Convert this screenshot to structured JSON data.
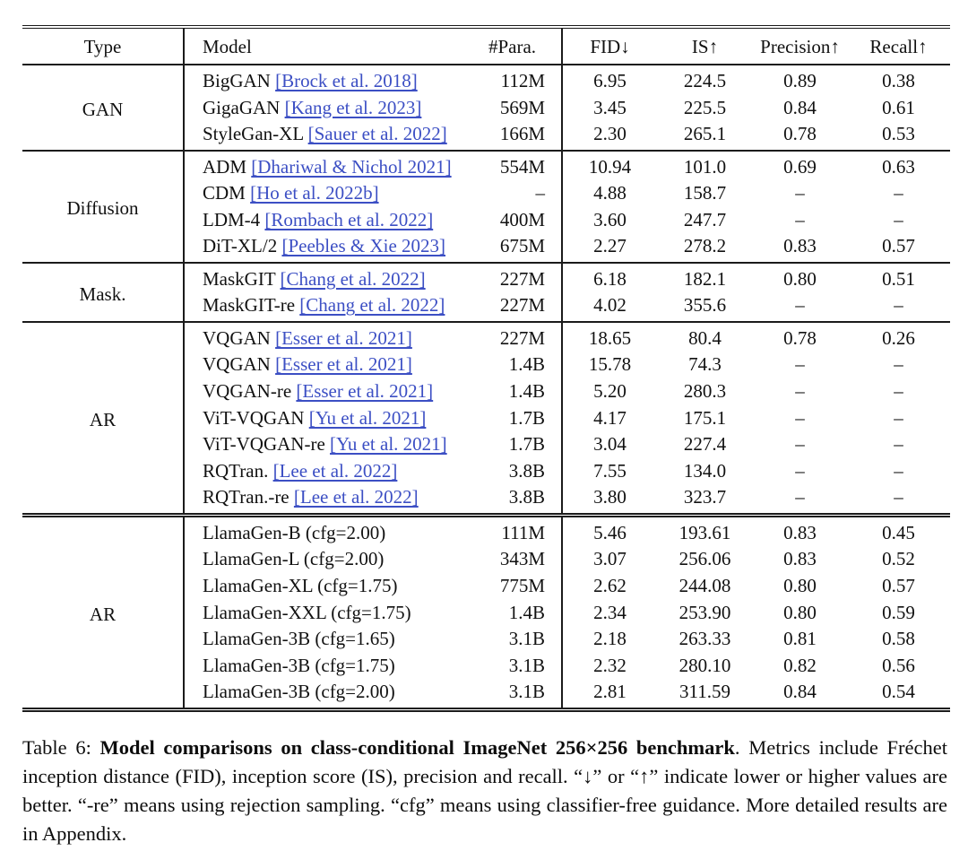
{
  "table": {
    "headers": [
      "Type",
      "Model",
      "#Para.",
      "FID↓",
      "IS↑",
      "Precision↑",
      "Recall↑"
    ],
    "groups": [
      {
        "type": "GAN",
        "rows": [
          {
            "model": "BigGAN",
            "cite": "[Brock et al. 2018]",
            "para": "112M",
            "fid": "6.95",
            "is": "224.5",
            "precision": "0.89",
            "recall": "0.38"
          },
          {
            "model": "GigaGAN",
            "cite": "[Kang et al. 2023]",
            "para": "569M",
            "fid": "3.45",
            "is": "225.5",
            "precision": "0.84",
            "recall": "0.61"
          },
          {
            "model": "StyleGan-XL",
            "cite": "[Sauer et al. 2022]",
            "para": "166M",
            "fid": "2.30",
            "is": "265.1",
            "precision": "0.78",
            "recall": "0.53"
          }
        ]
      },
      {
        "type": "Diffusion",
        "rows": [
          {
            "model": "ADM",
            "cite": "[Dhariwal & Nichol 2021]",
            "para": "554M",
            "fid": "10.94",
            "is": "101.0",
            "precision": "0.69",
            "recall": "0.63"
          },
          {
            "model": "CDM",
            "cite": "[Ho et al. 2022b]",
            "para": "–",
            "fid": "4.88",
            "is": "158.7",
            "precision": "–",
            "recall": "–"
          },
          {
            "model": "LDM-4",
            "cite": "[Rombach et al. 2022]",
            "para": "400M",
            "fid": "3.60",
            "is": "247.7",
            "precision": "–",
            "recall": "–"
          },
          {
            "model": "DiT-XL/2",
            "cite": "[Peebles & Xie 2023]",
            "para": "675M",
            "fid": "2.27",
            "is": "278.2",
            "precision": "0.83",
            "recall": "0.57"
          }
        ]
      },
      {
        "type": "Mask.",
        "rows": [
          {
            "model": "MaskGIT",
            "cite": "[Chang et al. 2022]",
            "para": "227M",
            "fid": "6.18",
            "is": "182.1",
            "precision": "0.80",
            "recall": "0.51"
          },
          {
            "model": "MaskGIT-re",
            "cite": "[Chang et al. 2022]",
            "para": "227M",
            "fid": "4.02",
            "is": "355.6",
            "precision": "–",
            "recall": "–"
          }
        ]
      },
      {
        "type": "AR",
        "rows": [
          {
            "model": "VQGAN",
            "cite": "[Esser et al. 2021]",
            "para": "227M",
            "fid": "18.65",
            "is": "80.4",
            "precision": "0.78",
            "recall": "0.26"
          },
          {
            "model": "VQGAN",
            "cite": "[Esser et al. 2021]",
            "para": "1.4B",
            "fid": "15.78",
            "is": "74.3",
            "precision": "–",
            "recall": "–"
          },
          {
            "model": "VQGAN-re",
            "cite": "[Esser et al. 2021]",
            "para": "1.4B",
            "fid": "5.20",
            "is": "280.3",
            "precision": "–",
            "recall": "–"
          },
          {
            "model": "ViT-VQGAN",
            "cite": "[Yu et al. 2021]",
            "para": "1.7B",
            "fid": "4.17",
            "is": "175.1",
            "precision": "–",
            "recall": "–"
          },
          {
            "model": "ViT-VQGAN-re",
            "cite": "[Yu et al. 2021]",
            "para": "1.7B",
            "fid": "3.04",
            "is": "227.4",
            "precision": "–",
            "recall": "–"
          },
          {
            "model": "RQTran.",
            "cite": "[Lee et al. 2022]",
            "para": "3.8B",
            "fid": "7.55",
            "is": "134.0",
            "precision": "–",
            "recall": "–"
          },
          {
            "model": "RQTran.-re",
            "cite": "[Lee et al. 2022]",
            "para": "3.8B",
            "fid": "3.80",
            "is": "323.7",
            "precision": "–",
            "recall": "–"
          }
        ]
      },
      {
        "type": "AR",
        "rows": [
          {
            "model": "LlamaGen-B (cfg=2.00)",
            "cite": "",
            "para": "111M",
            "fid": "5.46",
            "is": "193.61",
            "precision": "0.83",
            "recall": "0.45"
          },
          {
            "model": "LlamaGen-L (cfg=2.00)",
            "cite": "",
            "para": "343M",
            "fid": "3.07",
            "is": "256.06",
            "precision": "0.83",
            "recall": "0.52"
          },
          {
            "model": "LlamaGen-XL (cfg=1.75)",
            "cite": "",
            "para": "775M",
            "fid": "2.62",
            "is": "244.08",
            "precision": "0.80",
            "recall": "0.57"
          },
          {
            "model": "LlamaGen-XXL (cfg=1.75)",
            "cite": "",
            "para": "1.4B",
            "fid": "2.34",
            "is": "253.90",
            "precision": "0.80",
            "recall": "0.59"
          },
          {
            "model": "LlamaGen-3B (cfg=1.65)",
            "cite": "",
            "para": "3.1B",
            "fid": "2.18",
            "is": "263.33",
            "precision": "0.81",
            "recall": "0.58"
          },
          {
            "model": "LlamaGen-3B (cfg=1.75)",
            "cite": "",
            "para": "3.1B",
            "fid": "2.32",
            "is": "280.10",
            "precision": "0.82",
            "recall": "0.56"
          },
          {
            "model": "LlamaGen-3B (cfg=2.00)",
            "cite": "",
            "para": "3.1B",
            "fid": "2.81",
            "is": "311.59",
            "precision": "0.84",
            "recall": "0.54"
          }
        ]
      }
    ]
  },
  "caption": {
    "label": "Table 6: ",
    "title_bold": "Model comparisons on class-conditional ImageNet 256×256 benchmark",
    "rest": ". Metrics include Fréchet inception distance (FID), inception score (IS), precision and recall. “↓” or “↑” indicate lower or higher values are better. “-re” means using rejection sampling. “cfg” means using classifier-free guidance. More detailed results are in Appendix."
  },
  "colors": {
    "link_blue": "#3c4fc4",
    "rule_black": "#1b1b1b"
  }
}
